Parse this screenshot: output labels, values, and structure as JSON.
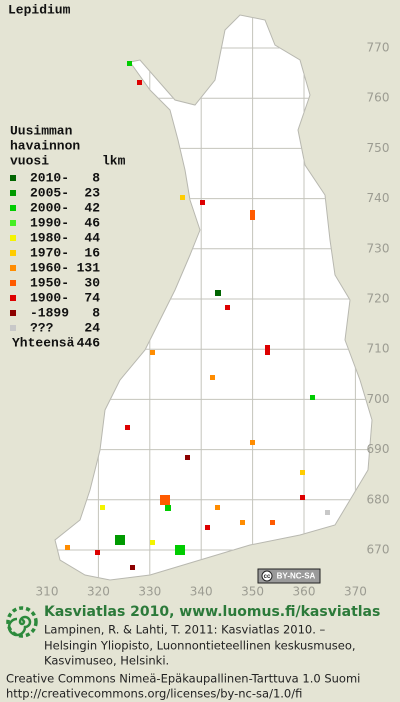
{
  "map": {
    "title": "Lepidium",
    "y_labels": [
      770,
      760,
      750,
      740,
      730,
      720,
      710,
      700,
      690,
      680,
      670
    ],
    "x_labels": [
      310,
      320,
      330,
      340,
      350,
      360,
      370
    ],
    "license_badge": "BY-NC-SA"
  },
  "legend": {
    "heading": [
      "Uusimman",
      "havainnon",
      "vuosi"
    ],
    "count_heading": "lkm",
    "items": [
      {
        "label": "2010-",
        "count": 8,
        "color": "#006400"
      },
      {
        "label": "2005-",
        "count": 23,
        "color": "#009a00"
      },
      {
        "label": "2000-",
        "count": 42,
        "color": "#00cc00"
      },
      {
        "label": "1990-",
        "count": 46,
        "color": "#44ee22"
      },
      {
        "label": "1980-",
        "count": 44,
        "color": "#f4f400"
      },
      {
        "label": "1970-",
        "count": 16,
        "color": "#ffcc00"
      },
      {
        "label": "1960-",
        "count": 131,
        "color": "#ff8c00"
      },
      {
        "label": "1950-",
        "count": 30,
        "color": "#ff5a00"
      },
      {
        "label": "1900-",
        "count": 74,
        "color": "#dd0000"
      },
      {
        "label": "-1899",
        "count": 8,
        "color": "#8c0000"
      },
      {
        "label": "???",
        "count": 24,
        "color": "#c8c8c8"
      }
    ],
    "total_label": "Yhteensä",
    "total": 446
  },
  "footer": {
    "title": "Kasviatlas 2010, www.luomus.fi/kasviatlas",
    "citation": [
      "Lampinen, R. & Lahti, T. 2011: Kasviatlas 2010. –",
      "Helsingin Yliopisto, Luonnontieteellinen keskusmuseo,",
      "Kasvimuseo, Helsinki."
    ],
    "license": [
      "Creative Commons Nimeä-Epäkaupallinen-Tarttuva 1.0 Suomi",
      "http://creativecommons.org/licenses/by-nc-sa/1.0/fi"
    ]
  }
}
